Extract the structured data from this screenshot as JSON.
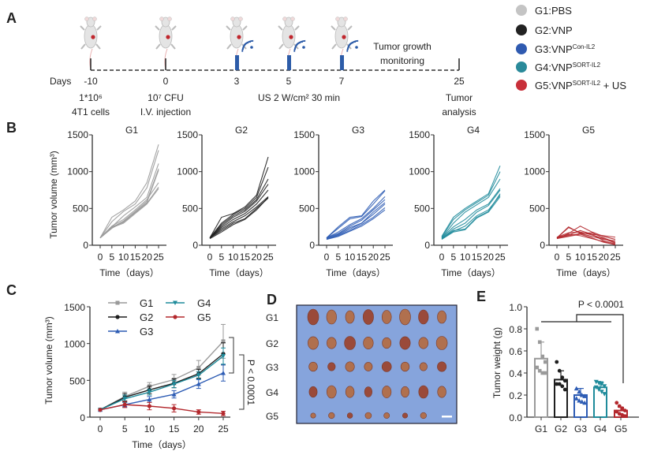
{
  "panel_labels": [
    "A",
    "B",
    "C",
    "D",
    "E"
  ],
  "colors": {
    "G1": "#9a9a9a",
    "G2": "#1e1e1e",
    "G3": "#2d5cb4",
    "G4": "#1f8b9b",
    "G5": "#b3282d"
  },
  "legend": [
    {
      "base": "G1:PBS",
      "sup": "",
      "suffix": "",
      "color": "#c4c4c4"
    },
    {
      "base": "G2:VNP",
      "sup": "",
      "suffix": "",
      "color": "#222222"
    },
    {
      "base": "G3:VNP",
      "sup": "Con-IL2",
      "suffix": "",
      "color": "#2f5ab0"
    },
    {
      "base": "G4:VNP",
      "sup": "SORT-IL2",
      "suffix": "",
      "color": "#2a8a9a"
    },
    {
      "base": "G5:VNP",
      "sup": "SORT-IL2",
      "suffix": " + US",
      "color": "#c8303a"
    }
  ],
  "timeline": {
    "days_label": "Days",
    "points": [
      {
        "day": "-10",
        "notes": [
          "1*10⁶",
          "4T1 cells"
        ]
      },
      {
        "day": "0",
        "notes": [
          "10⁷ CFU",
          "I.V. injection"
        ]
      },
      {
        "day": "3",
        "notes": []
      },
      {
        "day": "5",
        "notes": []
      },
      {
        "day": "7",
        "notes": []
      },
      {
        "day": "25",
        "notes": [
          "Tumor",
          "analysis"
        ]
      }
    ],
    "us_label": "US 2 W/cm² 30 min",
    "monitoring": [
      "Tumor growth",
      "monitoring"
    ]
  },
  "photo": {
    "row_labels": [
      "G1",
      "G2",
      "G3",
      "G4",
      "G5"
    ],
    "tumors_per_row": 8
  },
  "chart_data": [
    {
      "panel": "B",
      "type": "line",
      "title": "G1",
      "ylabel": "Tumor volume (mm³)",
      "xlabel": "Time（days）",
      "x": [
        0,
        5,
        10,
        15,
        20,
        25
      ],
      "xticks": [
        "0",
        "5",
        "10",
        "15",
        "20",
        "25"
      ],
      "ylim": [
        0,
        1500
      ],
      "yticks": [
        "0",
        "500",
        "1000",
        "1500"
      ],
      "color_key": "G1",
      "series": [
        {
          "values": [
            100,
            380,
            480,
            600,
            850,
            1370
          ]
        },
        {
          "values": [
            100,
            320,
            460,
            560,
            780,
            1290
          ]
        },
        {
          "values": [
            100,
            250,
            400,
            520,
            650,
            1110
          ]
        },
        {
          "values": [
            100,
            240,
            330,
            460,
            600,
            1040
          ]
        },
        {
          "values": [
            100,
            230,
            320,
            450,
            580,
            1020
          ]
        },
        {
          "values": [
            100,
            260,
            350,
            480,
            620,
            850
          ]
        },
        {
          "values": [
            100,
            250,
            310,
            440,
            570,
            790
          ]
        },
        {
          "values": [
            100,
            240,
            300,
            430,
            560,
            770
          ]
        }
      ]
    },
    {
      "panel": "B",
      "type": "line",
      "title": "G2",
      "ylabel": "",
      "xlabel": "Time（days）",
      "x": [
        0,
        5,
        10,
        15,
        20,
        25
      ],
      "xticks": [
        "0",
        "5",
        "10",
        "15",
        "20",
        "25"
      ],
      "ylim": [
        0,
        1500
      ],
      "yticks": [
        "0",
        "500",
        "1000",
        "1500"
      ],
      "color_key": "G2",
      "series": [
        {
          "values": [
            100,
            380,
            430,
            520,
            680,
            1200
          ]
        },
        {
          "values": [
            100,
            300,
            420,
            500,
            650,
            1060
          ]
        },
        {
          "values": [
            100,
            280,
            400,
            480,
            620,
            900
          ]
        },
        {
          "values": [
            100,
            260,
            380,
            460,
            600,
            830
          ]
        },
        {
          "values": [
            100,
            240,
            350,
            430,
            560,
            750
          ]
        },
        {
          "values": [
            100,
            220,
            320,
            400,
            520,
            660
          ]
        },
        {
          "values": [
            100,
            200,
            300,
            360,
            500,
            640
          ]
        },
        {
          "values": [
            90,
            180,
            280,
            350,
            480,
            650
          ]
        }
      ]
    },
    {
      "panel": "B",
      "type": "line",
      "title": "G3",
      "ylabel": "",
      "xlabel": "Time（days）",
      "x": [
        0,
        5,
        10,
        15,
        20,
        25
      ],
      "xticks": [
        "0",
        "5",
        "10",
        "15",
        "20",
        "25"
      ],
      "ylim": [
        0,
        1500
      ],
      "yticks": [
        "0",
        "500",
        "1000",
        "1500"
      ],
      "color_key": "G3",
      "series": [
        {
          "values": [
            100,
            250,
            380,
            400,
            600,
            750
          ]
        },
        {
          "values": [
            100,
            230,
            360,
            390,
            560,
            740
          ]
        },
        {
          "values": [
            100,
            180,
            280,
            360,
            500,
            660
          ]
        },
        {
          "values": [
            100,
            160,
            260,
            340,
            480,
            620
          ]
        },
        {
          "values": [
            90,
            150,
            240,
            300,
            450,
            580
          ]
        },
        {
          "values": [
            90,
            140,
            220,
            300,
            420,
            560
          ]
        },
        {
          "values": [
            80,
            130,
            200,
            280,
            380,
            510
          ]
        },
        {
          "values": [
            80,
            120,
            190,
            260,
            360,
            480
          ]
        }
      ]
    },
    {
      "panel": "B",
      "type": "line",
      "title": "G4",
      "ylabel": "",
      "xlabel": "Time（days）",
      "x": [
        0,
        5,
        10,
        15,
        20,
        25
      ],
      "xticks": [
        "0",
        "5",
        "10",
        "15",
        "20",
        "25"
      ],
      "ylim": [
        0,
        1500
      ],
      "yticks": [
        "0",
        "500",
        "1000",
        "1500"
      ],
      "color_key": "G4",
      "series": [
        {
          "values": [
            120,
            380,
            500,
            600,
            700,
            1080
          ]
        },
        {
          "values": [
            110,
            350,
            480,
            580,
            680,
            1000
          ]
        },
        {
          "values": [
            100,
            300,
            450,
            550,
            650,
            900
          ]
        },
        {
          "values": [
            100,
            250,
            350,
            480,
            560,
            770
          ]
        },
        {
          "values": [
            90,
            220,
            300,
            450,
            540,
            750
          ]
        },
        {
          "values": [
            90,
            200,
            220,
            380,
            460,
            700
          ]
        },
        {
          "values": [
            80,
            180,
            210,
            370,
            450,
            660
          ]
        },
        {
          "values": [
            90,
            190,
            260,
            400,
            480,
            680
          ]
        }
      ]
    },
    {
      "panel": "B",
      "type": "line",
      "title": "G5",
      "ylabel": "",
      "xlabel": "Time（days）",
      "x": [
        0,
        5,
        10,
        15,
        20,
        25
      ],
      "xticks": [
        "0",
        "5",
        "10",
        "15",
        "20",
        "25"
      ],
      "ylim": [
        0,
        1500
      ],
      "yticks": [
        "0",
        "500",
        "1000",
        "1500"
      ],
      "color_key": "G5",
      "series": [
        {
          "values": [
            100,
            240,
            170,
            150,
            130,
            110
          ]
        },
        {
          "values": [
            100,
            250,
            160,
            120,
            80,
            60
          ]
        },
        {
          "values": [
            90,
            160,
            260,
            180,
            120,
            80
          ]
        },
        {
          "values": [
            110,
            140,
            200,
            150,
            60,
            20
          ]
        },
        {
          "values": [
            100,
            130,
            160,
            170,
            100,
            40
          ]
        },
        {
          "values": [
            90,
            120,
            150,
            100,
            40,
            10
          ]
        },
        {
          "values": [
            100,
            150,
            130,
            90,
            50,
            5
          ]
        },
        {
          "values": [
            110,
            170,
            180,
            140,
            90,
            30
          ]
        }
      ]
    },
    {
      "panel": "C",
      "type": "line",
      "ylabel": "Tumor volume (mm³)",
      "xlabel": "Time（days）",
      "x": [
        0,
        5,
        10,
        15,
        20,
        25
      ],
      "xticks": [
        "0",
        "5",
        "10",
        "15",
        "20",
        "25"
      ],
      "ylim": [
        0,
        1500
      ],
      "yticks": [
        "0",
        "500",
        "1000",
        "1500"
      ],
      "legend": "top-left",
      "annotation": "P < 0.0001",
      "series": [
        {
          "name": "G1",
          "marker": "square",
          "values": [
            100,
            280,
            420,
            510,
            670,
            1030
          ],
          "errors": [
            0,
            60,
            50,
            70,
            100,
            230
          ]
        },
        {
          "name": "G2",
          "marker": "circle",
          "values": [
            100,
            270,
            370,
            460,
            590,
            860
          ],
          "errors": [
            0,
            50,
            50,
            60,
            60,
            150
          ]
        },
        {
          "name": "G3",
          "marker": "triangle-up",
          "values": [
            100,
            170,
            240,
            310,
            450,
            600
          ],
          "errors": [
            0,
            30,
            40,
            50,
            60,
            110
          ]
        },
        {
          "name": "G4",
          "marker": "triangle-down",
          "values": [
            100,
            250,
            340,
            450,
            570,
            830
          ],
          "errors": [
            0,
            50,
            40,
            50,
            50,
            110
          ]
        },
        {
          "name": "G5",
          "marker": "circle",
          "values": [
            100,
            170,
            150,
            120,
            70,
            50
          ],
          "errors": [
            0,
            40,
            50,
            50,
            30,
            30
          ]
        }
      ]
    },
    {
      "panel": "E",
      "type": "bar",
      "ylabel": "Tumor weight (g)",
      "categories": [
        "G1",
        "G2",
        "G3",
        "G4",
        "G5"
      ],
      "ylim": [
        0,
        1.0
      ],
      "yticks": [
        "0.0",
        "0.2",
        "0.4",
        "0.6",
        "0.8",
        "1.0"
      ],
      "values": [
        0.53,
        0.34,
        0.2,
        0.27,
        0.06
      ],
      "sd": [
        0.15,
        0.08,
        0.06,
        0.05,
        0.03
      ],
      "points": [
        [
          0.8,
          0.68,
          0.55,
          0.5,
          0.45,
          0.42,
          0.4,
          0.4
        ],
        [
          0.5,
          0.42,
          0.36,
          0.33,
          0.3,
          0.3,
          0.28,
          0.25
        ],
        [
          0.26,
          0.23,
          0.2,
          0.19,
          0.17,
          0.15,
          0.14,
          0.13
        ],
        [
          0.32,
          0.31,
          0.3,
          0.28,
          0.27,
          0.25,
          0.23,
          0.21
        ],
        [
          0.13,
          0.1,
          0.08,
          0.06,
          0.05,
          0.03,
          0.02,
          0.01
        ]
      ],
      "annotation": "P < 0.0001"
    }
  ]
}
